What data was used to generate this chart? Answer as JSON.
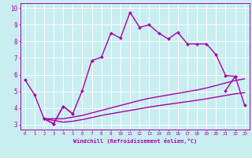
{
  "xlabel": "Windchill (Refroidissement éolien,°C)",
  "xlim": [
    -0.5,
    23.5
  ],
  "ylim": [
    2.7,
    10.3
  ],
  "xticks": [
    0,
    1,
    2,
    3,
    4,
    5,
    6,
    7,
    8,
    9,
    10,
    11,
    12,
    13,
    14,
    15,
    16,
    17,
    18,
    19,
    20,
    21,
    22,
    23
  ],
  "yticks": [
    3,
    4,
    5,
    6,
    7,
    8,
    9,
    10
  ],
  "bg_color": "#c8eef0",
  "grid_color": "#ffffff",
  "line_color": "#aa00aa",
  "lines": [
    {
      "x": [
        0,
        1,
        2,
        3,
        4,
        5,
        6,
        7,
        8,
        9,
        10,
        11,
        12,
        13,
        14,
        15,
        16,
        17,
        18,
        19,
        20,
        21,
        22
      ],
      "y": [
        5.7,
        4.8,
        3.35,
        3.05,
        4.1,
        3.65,
        5.05,
        6.85,
        7.05,
        8.5,
        8.2,
        9.75,
        8.85,
        9.0,
        8.5,
        8.15,
        8.55,
        7.85,
        7.85,
        7.85,
        7.2,
        5.95,
        5.9
      ],
      "marker": "D",
      "markersize": 2.0,
      "linewidth": 1.0,
      "linestyle": "-"
    },
    {
      "x": [
        2,
        3,
        4,
        5,
        21,
        22,
        23
      ],
      "y": [
        3.35,
        3.05,
        4.1,
        3.65,
        5.05,
        5.9,
        4.15
      ],
      "marker": "D",
      "markersize": 2.0,
      "linewidth": 1.0,
      "linestyle": "-",
      "break_after": 1
    },
    {
      "x": [
        2,
        4,
        5,
        6,
        7,
        8,
        9,
        10,
        11,
        12,
        13,
        14,
        15,
        16,
        17,
        18,
        19,
        20,
        21,
        22,
        23
      ],
      "y": [
        3.35,
        3.35,
        3.45,
        3.55,
        3.7,
        3.85,
        4.0,
        4.15,
        4.3,
        4.45,
        4.58,
        4.68,
        4.78,
        4.88,
        4.98,
        5.08,
        5.2,
        5.35,
        5.5,
        5.65,
        5.75
      ],
      "marker": null,
      "markersize": 0,
      "linewidth": 1.0,
      "linestyle": "-",
      "break_after": null
    },
    {
      "x": [
        2,
        4,
        5,
        6,
        7,
        8,
        9,
        10,
        11,
        12,
        13,
        14,
        15,
        16,
        17,
        18,
        19,
        20,
        21,
        22,
        23
      ],
      "y": [
        3.35,
        3.15,
        3.2,
        3.3,
        3.42,
        3.55,
        3.65,
        3.75,
        3.85,
        3.95,
        4.05,
        4.14,
        4.22,
        4.3,
        4.38,
        4.46,
        4.55,
        4.65,
        4.75,
        4.85,
        4.92
      ],
      "marker": null,
      "markersize": 0,
      "linewidth": 1.0,
      "linestyle": "-",
      "break_after": null
    }
  ],
  "line2_segments": [
    {
      "x": [
        2,
        3,
        4,
        5
      ],
      "y": [
        3.35,
        3.05,
        4.1,
        3.65
      ]
    },
    {
      "x": [
        21,
        22,
        23
      ],
      "y": [
        5.05,
        5.9,
        4.15
      ]
    }
  ]
}
